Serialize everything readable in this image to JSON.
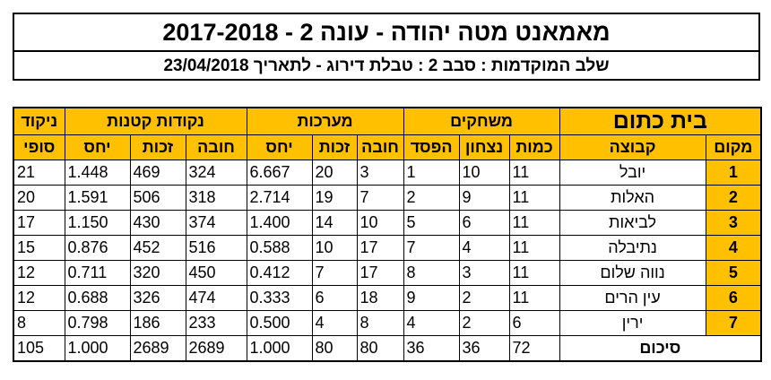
{
  "header": {
    "title": "מאמאנט מטה יהודה  -  עונה 2  -  2017-2018",
    "subtitle": "שלב המוקדמות : סבב 2  :  טבלת דירוג - לתאריך 23/04/2018"
  },
  "table": {
    "group_headers": {
      "final_points": "ניקוד",
      "small_points": "נקודות קטנות",
      "sets": "מערכות",
      "games": "משחקים",
      "section": "בית כתום"
    },
    "sub_headers": {
      "final": "סופי",
      "ratio": "יחס",
      "won": "זכות",
      "lost": "חובה",
      "losses": "הפסד",
      "wins": "נצחון",
      "played": "כמות",
      "team": "קבוצה",
      "rank": "מקום"
    },
    "rows": [
      {
        "final": "21",
        "sp_ratio": "1.448",
        "sp_won": "469",
        "sp_lost": "324",
        "sets_ratio": "6.667",
        "sets_won": "20",
        "sets_lost": "3",
        "losses": "1",
        "wins": "10",
        "played": "11",
        "team": "יובל",
        "rank": "1"
      },
      {
        "final": "20",
        "sp_ratio": "1.591",
        "sp_won": "506",
        "sp_lost": "318",
        "sets_ratio": "2.714",
        "sets_won": "19",
        "sets_lost": "7",
        "losses": "2",
        "wins": "9",
        "played": "11",
        "team": "האלות",
        "rank": "2"
      },
      {
        "final": "17",
        "sp_ratio": "1.150",
        "sp_won": "430",
        "sp_lost": "374",
        "sets_ratio": "1.400",
        "sets_won": "14",
        "sets_lost": "10",
        "losses": "5",
        "wins": "6",
        "played": "11",
        "team": "לביאות",
        "rank": "3"
      },
      {
        "final": "15",
        "sp_ratio": "0.876",
        "sp_won": "452",
        "sp_lost": "516",
        "sets_ratio": "0.588",
        "sets_won": "10",
        "sets_lost": "17",
        "losses": "7",
        "wins": "4",
        "played": "11",
        "team": "נתיבלה",
        "rank": "4"
      },
      {
        "final": "12",
        "sp_ratio": "0.711",
        "sp_won": "320",
        "sp_lost": "450",
        "sets_ratio": "0.412",
        "sets_won": "7",
        "sets_lost": "17",
        "losses": "8",
        "wins": "3",
        "played": "11",
        "team": "נווה שלום",
        "rank": "5"
      },
      {
        "final": "12",
        "sp_ratio": "0.688",
        "sp_won": "326",
        "sp_lost": "474",
        "sets_ratio": "0.333",
        "sets_won": "6",
        "sets_lost": "18",
        "losses": "9",
        "wins": "2",
        "played": "11",
        "team": "עין הרים",
        "rank": "6"
      },
      {
        "final": "8",
        "sp_ratio": "0.798",
        "sp_won": "186",
        "sp_lost": "233",
        "sets_ratio": "0.500",
        "sets_won": "4",
        "sets_lost": "8",
        "losses": "4",
        "wins": "2",
        "played": "6",
        "team": "ירין",
        "rank": "7"
      }
    ],
    "totals": {
      "final": "105",
      "sp_ratio": "1.000",
      "sp_won": "2689",
      "sp_lost": "2689",
      "sets_ratio": "1.000",
      "sets_won": "80",
      "sets_lost": "80",
      "losses": "36",
      "wins": "36",
      "played": "72",
      "label": "סיכום"
    }
  },
  "colors": {
    "header_fill": "#ffc000",
    "border": "#000000"
  }
}
